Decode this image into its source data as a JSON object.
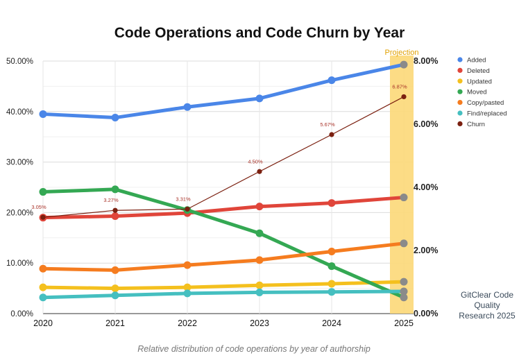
{
  "chart_data": {
    "type": "line",
    "title": "Code Operations and Code Churn by Year",
    "caption": "Relative distribution of code operations by year of authorship",
    "source_note": "GitClear Code Quality Research 2025",
    "projection_label": "Projection",
    "x": [
      2020,
      2021,
      2022,
      2023,
      2024,
      2025
    ],
    "x_tick_labels": [
      "2020",
      "2021",
      "2022",
      "2023",
      "2024",
      "2025"
    ],
    "y_left": {
      "min": 0,
      "max": 50,
      "ticks": [
        "0.00%",
        "10.00%",
        "20.00%",
        "30.00%",
        "40.00%",
        "50.00%"
      ]
    },
    "y_right": {
      "min": 0,
      "max": 8,
      "ticks": [
        "0.00%",
        "2.00%",
        "4.00%",
        "6.00%",
        "8.00%"
      ]
    },
    "grid": true,
    "legend_position": "right",
    "series": [
      {
        "name": "Added",
        "axis": "left",
        "color": "#4a86e8",
        "values": [
          39.5,
          38.8,
          40.9,
          42.6,
          46.2,
          49.3
        ]
      },
      {
        "name": "Deleted",
        "axis": "left",
        "color": "#e0453a",
        "values": [
          19.0,
          19.3,
          19.9,
          21.2,
          21.9,
          23.0
        ]
      },
      {
        "name": "Updated",
        "axis": "left",
        "color": "#f4c01e",
        "values": [
          5.2,
          5.0,
          5.2,
          5.6,
          5.9,
          6.3
        ]
      },
      {
        "name": "Moved",
        "axis": "left",
        "color": "#34a853",
        "values": [
          24.1,
          24.6,
          20.5,
          15.9,
          9.4,
          3.2
        ]
      },
      {
        "name": "Copy/pasted",
        "axis": "left",
        "color": "#f57c1f",
        "values": [
          8.9,
          8.6,
          9.6,
          10.6,
          12.3,
          13.9
        ]
      },
      {
        "name": "Find/replaced",
        "axis": "left",
        "color": "#45bfc0",
        "values": [
          3.2,
          3.6,
          4.0,
          4.2,
          4.3,
          4.4
        ]
      },
      {
        "name": "Churn",
        "axis": "right",
        "color": "#7b2010",
        "values": [
          3.05,
          3.27,
          3.31,
          4.5,
          5.67,
          6.87
        ],
        "data_labels": [
          "3.05%",
          "3.27%",
          "3.31%",
          "4.50%",
          "5.67%",
          "6.87%"
        ]
      }
    ]
  }
}
